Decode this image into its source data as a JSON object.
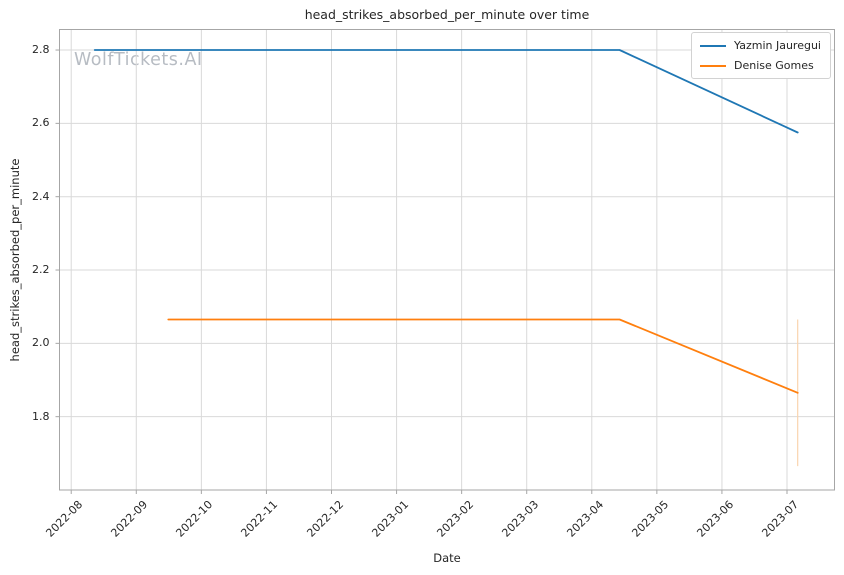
{
  "watermark": {
    "text": "WolfTickets.AI",
    "color": "#b7bcc3"
  },
  "theme": {
    "background": "#ffffff",
    "grid_color": "#d9d9d9",
    "spine_color": "#a6a6a6",
    "text_color": "#262626",
    "legend_border_color": "#d2d2d2"
  },
  "chart_data": {
    "type": "line",
    "title": "head_strikes_absorbed_per_minute over time",
    "xlabel": "Date",
    "ylabel": "head_strikes_absorbed_per_minute",
    "grid": true,
    "legend_position": "upper right",
    "x_tick_labels": [
      "2022-08",
      "2022-09",
      "2022-10",
      "2022-11",
      "2022-12",
      "2023-01",
      "2023-02",
      "2023-03",
      "2023-04",
      "2023-05",
      "2023-06",
      "2023-07"
    ],
    "y_ticks": [
      1.8,
      2.0,
      2.2,
      2.4,
      2.6,
      2.8
    ],
    "ylim": [
      1.6,
      2.856
    ],
    "xlim_months": [
      -0.18,
      11.73
    ],
    "series": [
      {
        "name": "Yazmin Jauregui",
        "color": "#1f77b4",
        "points": [
          {
            "date": "2022-08-12",
            "value": 2.8
          },
          {
            "date": "2023-04-14",
            "value": 2.8
          },
          {
            "date": "2023-07-06",
            "value": 2.575
          }
        ]
      },
      {
        "name": "Denise Gomes",
        "color": "#ff7f0e",
        "points": [
          {
            "date": "2022-09-16",
            "value": 2.065
          },
          {
            "date": "2023-04-14",
            "value": 2.065
          },
          {
            "date": "2023-07-06",
            "value": 1.865
          }
        ],
        "error_bar": {
          "date": "2023-07-06",
          "low": 1.665,
          "high": 2.065,
          "color": "#f9d4ae"
        }
      }
    ]
  }
}
